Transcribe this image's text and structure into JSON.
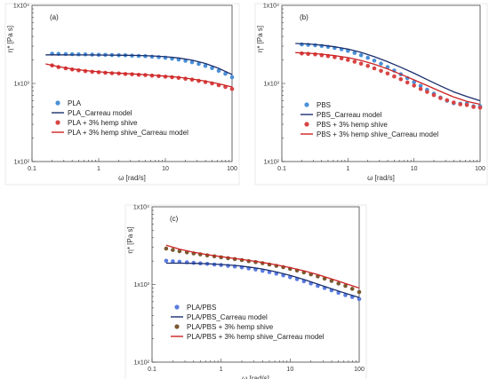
{
  "chart_data": [
    {
      "type": "scatter",
      "panel_label": "(a)",
      "xlabel": "ω [rad/s]",
      "ylabel": "η* [Pa s]",
      "xscale": "log",
      "yscale": "log",
      "xlim": [
        0.1,
        100
      ],
      "ylim": [
        100,
        10000
      ],
      "x_ticks": [
        "0.1",
        "1",
        "10",
        "100"
      ],
      "y_ticks": [
        "1x10²",
        "1x10³",
        "1x10⁴"
      ],
      "grid": false,
      "legend_position": "lower-left",
      "series": [
        {
          "name": "PLA",
          "kind": "markers",
          "color": "#4a90d9",
          "x": [
            0.2,
            0.25,
            0.32,
            0.4,
            0.5,
            0.63,
            0.8,
            1.0,
            1.26,
            1.58,
            2.0,
            2.51,
            3.16,
            3.98,
            5.01,
            6.31,
            7.94,
            10,
            12.6,
            15.8,
            20,
            25.1,
            31.6,
            39.8,
            50.1,
            63.1,
            79.4,
            100
          ],
          "y": [
            2400,
            2390,
            2380,
            2370,
            2360,
            2350,
            2340,
            2330,
            2320,
            2310,
            2300,
            2290,
            2270,
            2250,
            2230,
            2200,
            2170,
            2130,
            2080,
            2020,
            1950,
            1870,
            1780,
            1680,
            1570,
            1450,
            1330,
            1200
          ]
        },
        {
          "name": "PLA_Carreau model",
          "kind": "line",
          "color": "#1a2f6e",
          "x": [
            0.16,
            0.25,
            0.4,
            0.63,
            1.0,
            1.58,
            2.51,
            3.98,
            6.31,
            10,
            15.8,
            25.1,
            39.8,
            63.1,
            100
          ],
          "y": [
            2320,
            2320,
            2318,
            2316,
            2312,
            2305,
            2295,
            2278,
            2250,
            2200,
            2120,
            1990,
            1800,
            1560,
            1300
          ]
        },
        {
          "name": "PLA + 3% hemp shive",
          "kind": "markers",
          "color": "#d94444",
          "x": [
            0.2,
            0.25,
            0.32,
            0.4,
            0.5,
            0.63,
            0.8,
            1.0,
            1.26,
            1.58,
            2.0,
            2.51,
            3.16,
            3.98,
            5.01,
            6.31,
            7.94,
            10,
            12.6,
            15.8,
            20,
            25.1,
            31.6,
            39.8,
            50.1,
            63.1,
            79.4,
            100
          ],
          "y": [
            1700,
            1620,
            1560,
            1510,
            1470,
            1440,
            1410,
            1390,
            1370,
            1350,
            1340,
            1320,
            1310,
            1290,
            1280,
            1260,
            1240,
            1220,
            1200,
            1180,
            1150,
            1120,
            1080,
            1040,
            1000,
            950,
            900,
            850
          ]
        },
        {
          "name": "PLA + 3% hemp shive_Carreau model",
          "kind": "line",
          "color": "#cc2222",
          "x": [
            0.16,
            0.25,
            0.4,
            0.63,
            1.0,
            1.58,
            2.51,
            3.98,
            6.31,
            10,
            15.8,
            25.1,
            39.8,
            63.1,
            100
          ],
          "y": [
            1780,
            1640,
            1530,
            1460,
            1410,
            1370,
            1340,
            1310,
            1280,
            1240,
            1200,
            1140,
            1070,
            990,
            900
          ]
        }
      ]
    },
    {
      "type": "scatter",
      "panel_label": "(b)",
      "xlabel": "ω [rad/s]",
      "ylabel": "η* [Pa s]",
      "xscale": "log",
      "yscale": "log",
      "xlim": [
        0.1,
        100
      ],
      "ylim": [
        100,
        10000
      ],
      "x_ticks": [
        "0.1",
        "1",
        "10",
        "100"
      ],
      "y_ticks": [
        "1x10²",
        "1x10³",
        "1x10⁴"
      ],
      "grid": false,
      "legend_position": "lower-left",
      "series": [
        {
          "name": "PBS",
          "kind": "markers",
          "color": "#4a90d9",
          "x": [
            0.2,
            0.25,
            0.32,
            0.4,
            0.5,
            0.63,
            0.8,
            1.0,
            1.26,
            1.58,
            2.0,
            2.51,
            3.16,
            3.98,
            5.01,
            6.31,
            7.94,
            10,
            12.6,
            15.8,
            20,
            25.1,
            31.6,
            39.8,
            50.1,
            63.1,
            79.4,
            100
          ],
          "y": [
            3150,
            3120,
            3080,
            3020,
            2940,
            2850,
            2740,
            2610,
            2460,
            2300,
            2130,
            1960,
            1790,
            1620,
            1460,
            1310,
            1170,
            1040,
            930,
            830,
            740,
            660,
            600,
            560,
            550,
            550,
            510,
            510
          ]
        },
        {
          "name": "PBS_Carreau model",
          "kind": "line",
          "color": "#1a2f6e",
          "x": [
            0.16,
            0.25,
            0.4,
            0.63,
            1.0,
            1.58,
            2.51,
            3.98,
            6.31,
            10,
            15.8,
            25.1,
            39.8,
            63.1,
            100
          ],
          "y": [
            3250,
            3200,
            3100,
            2950,
            2750,
            2500,
            2200,
            1900,
            1610,
            1350,
            1120,
            930,
            780,
            680,
            600
          ]
        },
        {
          "name": "PBS + 3% hemp shive",
          "kind": "markers",
          "color": "#d94444",
          "x": [
            0.2,
            0.25,
            0.32,
            0.4,
            0.5,
            0.63,
            0.8,
            1.0,
            1.26,
            1.58,
            2.0,
            2.51,
            3.16,
            3.98,
            5.01,
            6.31,
            7.94,
            10,
            12.6,
            15.8,
            20,
            25.1,
            31.6,
            39.8,
            50.1,
            63.1,
            79.4,
            100
          ],
          "y": [
            2420,
            2390,
            2350,
            2300,
            2240,
            2170,
            2090,
            2000,
            1900,
            1790,
            1680,
            1560,
            1450,
            1340,
            1230,
            1130,
            1030,
            940,
            850,
            780,
            710,
            650,
            610,
            570,
            540,
            530,
            500,
            490
          ]
        },
        {
          "name": "PBS + 3% hemp shive_Carreau model",
          "kind": "line",
          "color": "#cc2222",
          "x": [
            0.16,
            0.25,
            0.4,
            0.63,
            1.0,
            1.58,
            2.51,
            3.98,
            6.31,
            10,
            15.8,
            25.1,
            39.8,
            63.1,
            100
          ],
          "y": [
            2480,
            2440,
            2370,
            2270,
            2140,
            1970,
            1760,
            1530,
            1310,
            1110,
            940,
            790,
            670,
            590,
            540
          ]
        }
      ]
    },
    {
      "type": "scatter",
      "panel_label": "(c)",
      "xlabel": "ω [rad/s]",
      "ylabel": "η* [Pa s]",
      "xscale": "log",
      "yscale": "log",
      "xlim": [
        0.1,
        100
      ],
      "ylim": [
        100,
        10000
      ],
      "x_ticks": [
        "0.1",
        "1",
        "10",
        "100"
      ],
      "y_ticks": [
        "1x10²",
        "1x10³",
        "1x10⁴"
      ],
      "grid": false,
      "legend_position": "lower-left",
      "series": [
        {
          "name": "PLA/PBS",
          "kind": "markers",
          "color": "#5a7be0",
          "x": [
            0.16,
            0.2,
            0.25,
            0.32,
            0.4,
            0.5,
            0.63,
            0.8,
            1.0,
            1.26,
            1.58,
            2.0,
            2.51,
            3.16,
            3.98,
            5.01,
            6.31,
            7.94,
            10,
            12.6,
            15.8,
            20,
            25.1,
            31.6,
            39.8,
            50.1,
            63.1,
            79.4,
            100
          ],
          "y": [
            2020,
            1990,
            1960,
            1930,
            1900,
            1870,
            1840,
            1810,
            1780,
            1740,
            1700,
            1660,
            1610,
            1560,
            1500,
            1440,
            1380,
            1310,
            1240,
            1170,
            1100,
            1030,
            960,
            900,
            840,
            780,
            730,
            690,
            650
          ]
        },
        {
          "name": "PLA/PBS_Carreau model",
          "kind": "line",
          "color": "#1a2f6e",
          "x": [
            0.16,
            0.25,
            0.4,
            0.63,
            1.0,
            1.58,
            2.51,
            3.98,
            6.31,
            10,
            15.8,
            25.1,
            39.8,
            63.1,
            100
          ],
          "y": [
            1880,
            1880,
            1870,
            1850,
            1810,
            1760,
            1680,
            1580,
            1450,
            1310,
            1160,
            1010,
            880,
            770,
            680
          ]
        },
        {
          "name": "PLA/PBS + 3% hemp shive",
          "kind": "markers",
          "color": "#7a5a30",
          "x": [
            0.16,
            0.2,
            0.25,
            0.32,
            0.4,
            0.5,
            0.63,
            0.8,
            1.0,
            1.26,
            1.58,
            2.0,
            2.51,
            3.16,
            3.98,
            5.01,
            6.31,
            7.94,
            10,
            12.6,
            15.8,
            20,
            25.1,
            31.6,
            39.8,
            50.1,
            63.1,
            79.4,
            100
          ],
          "y": [
            2900,
            2780,
            2680,
            2590,
            2510,
            2440,
            2370,
            2300,
            2240,
            2180,
            2120,
            2060,
            2000,
            1940,
            1880,
            1810,
            1740,
            1670,
            1590,
            1510,
            1430,
            1350,
            1270,
            1190,
            1110,
            1030,
            960,
            880,
            800
          ]
        },
        {
          "name": "PLA/PBS + 3% hemp shive_Carreau model",
          "kind": "line",
          "color": "#cc2222",
          "x": [
            0.16,
            0.25,
            0.4,
            0.63,
            1.0,
            1.58,
            2.51,
            3.98,
            6.31,
            10,
            15.8,
            25.1,
            39.8,
            63.1,
            100
          ],
          "y": [
            3200,
            2850,
            2600,
            2420,
            2280,
            2160,
            2040,
            1920,
            1790,
            1650,
            1500,
            1340,
            1180,
            1030,
            900
          ]
        }
      ]
    }
  ]
}
